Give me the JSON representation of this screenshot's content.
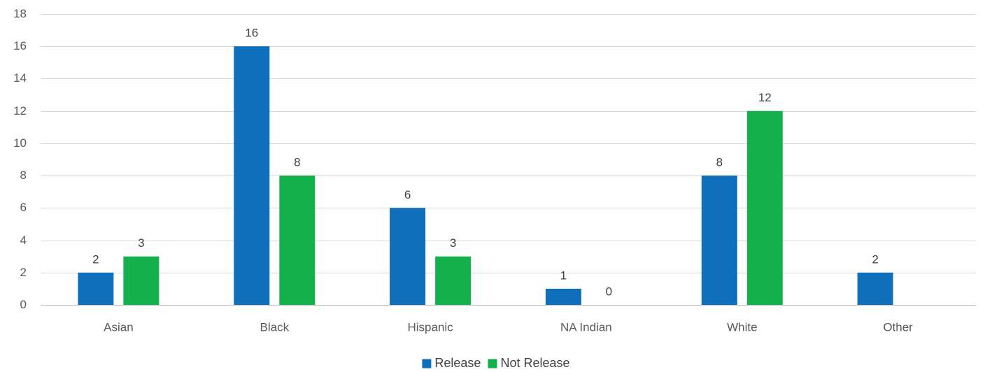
{
  "chart_data": {
    "type": "bar",
    "categories": [
      "Asian",
      "Black",
      "Hispanic",
      "NA Indian",
      "White",
      "Other"
    ],
    "series": [
      {
        "name": "Release",
        "values": [
          2,
          16,
          6,
          1,
          8,
          2
        ],
        "labels": [
          "2",
          "16",
          "6",
          "1",
          "8",
          "2"
        ],
        "color": "#0f6fba"
      },
      {
        "name": "Not Release",
        "values": [
          3,
          8,
          3,
          0,
          12,
          null
        ],
        "labels": [
          "3",
          "8",
          "3",
          "0",
          "12",
          ""
        ],
        "color": "#14b04c"
      }
    ],
    "ylim": [
      0,
      18
    ],
    "yticks": [
      0,
      2,
      4,
      6,
      8,
      10,
      12,
      14,
      16,
      18
    ],
    "title": "",
    "xlabel": "",
    "ylabel": "",
    "grid": true,
    "legend": "bottom-center",
    "data_labels": true
  }
}
